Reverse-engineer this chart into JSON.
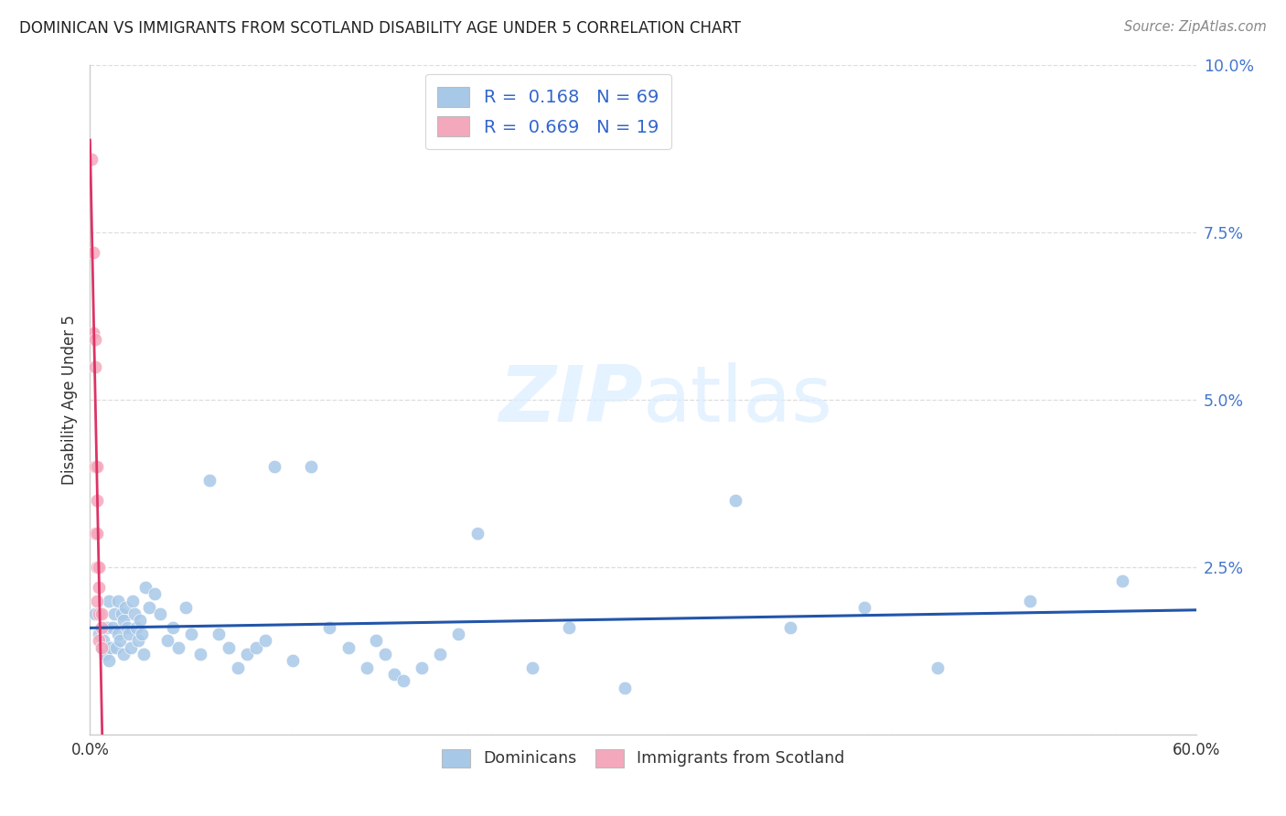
{
  "title": "DOMINICAN VS IMMIGRANTS FROM SCOTLAND DISABILITY AGE UNDER 5 CORRELATION CHART",
  "source": "Source: ZipAtlas.com",
  "ylabel": "Disability Age Under 5",
  "xlim": [
    0.0,
    0.6
  ],
  "ylim": [
    0.0,
    0.1
  ],
  "yticks": [
    0.0,
    0.025,
    0.05,
    0.075,
    0.1
  ],
  "ytick_labels": [
    "",
    "2.5%",
    "5.0%",
    "7.5%",
    "10.0%"
  ],
  "xticks": [
    0.0,
    0.6
  ],
  "xtick_labels": [
    "0.0%",
    "60.0%"
  ],
  "blue_color": "#a8c8e8",
  "pink_color": "#f4a8bc",
  "blue_line_color": "#2255aa",
  "pink_line_color": "#dd3366",
  "legend_blue_label": "Dominicans",
  "legend_pink_label": "Immigrants from Scotland",
  "legend_text_color": "#333333",
  "legend_value_color": "#3366cc",
  "r_blue": 0.168,
  "n_blue": 69,
  "r_pink": 0.669,
  "n_pink": 19,
  "blue_scatter_x": [
    0.003,
    0.005,
    0.006,
    0.007,
    0.008,
    0.009,
    0.01,
    0.01,
    0.011,
    0.012,
    0.013,
    0.014,
    0.015,
    0.015,
    0.016,
    0.017,
    0.018,
    0.018,
    0.019,
    0.02,
    0.021,
    0.022,
    0.023,
    0.024,
    0.025,
    0.026,
    0.027,
    0.028,
    0.029,
    0.03,
    0.032,
    0.035,
    0.038,
    0.042,
    0.045,
    0.048,
    0.052,
    0.055,
    0.06,
    0.065,
    0.07,
    0.075,
    0.08,
    0.085,
    0.09,
    0.095,
    0.1,
    0.11,
    0.12,
    0.13,
    0.14,
    0.15,
    0.155,
    0.16,
    0.165,
    0.17,
    0.18,
    0.19,
    0.2,
    0.21,
    0.24,
    0.26,
    0.29,
    0.35,
    0.38,
    0.42,
    0.46,
    0.51,
    0.56
  ],
  "blue_scatter_y": [
    0.018,
    0.015,
    0.013,
    0.014,
    0.012,
    0.016,
    0.02,
    0.011,
    0.013,
    0.016,
    0.018,
    0.013,
    0.015,
    0.02,
    0.014,
    0.018,
    0.017,
    0.012,
    0.019,
    0.016,
    0.015,
    0.013,
    0.02,
    0.018,
    0.016,
    0.014,
    0.017,
    0.015,
    0.012,
    0.022,
    0.019,
    0.021,
    0.018,
    0.014,
    0.016,
    0.013,
    0.019,
    0.015,
    0.012,
    0.038,
    0.015,
    0.013,
    0.01,
    0.012,
    0.013,
    0.014,
    0.04,
    0.011,
    0.04,
    0.016,
    0.013,
    0.01,
    0.014,
    0.012,
    0.009,
    0.008,
    0.01,
    0.012,
    0.015,
    0.03,
    0.01,
    0.016,
    0.007,
    0.035,
    0.016,
    0.019,
    0.01,
    0.02,
    0.023
  ],
  "pink_scatter_x": [
    0.001,
    0.002,
    0.002,
    0.003,
    0.003,
    0.003,
    0.003,
    0.004,
    0.004,
    0.004,
    0.004,
    0.004,
    0.005,
    0.005,
    0.005,
    0.005,
    0.006,
    0.006,
    0.006
  ],
  "pink_scatter_y": [
    0.086,
    0.072,
    0.06,
    0.059,
    0.055,
    0.04,
    0.03,
    0.04,
    0.035,
    0.03,
    0.025,
    0.02,
    0.025,
    0.022,
    0.018,
    0.014,
    0.018,
    0.016,
    0.013
  ],
  "watermark_zip": "ZIP",
  "watermark_atlas": "atlas",
  "background_color": "#ffffff",
  "grid_color": "#dddddd",
  "spine_color": "#cccccc"
}
